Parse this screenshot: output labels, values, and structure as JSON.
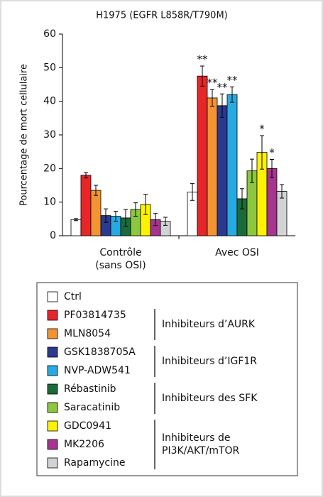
{
  "chart_data": {
    "type": "bar",
    "title": "H1975 (EGFR L858R/T790M)",
    "y_label": "Pourcentage de mort cellulaire",
    "categories": [
      [
        "Contrôle",
        "(sans OSI)"
      ],
      [
        "Avec OSI"
      ]
    ],
    "ylim": [
      0,
      60
    ],
    "yticks": [
      0,
      10,
      20,
      30,
      40,
      50,
      60
    ],
    "series": [
      {
        "name": "Ctrl",
        "color": "#ffffff",
        "values": [
          4.8,
          13
        ],
        "errors": [
          0.3,
          2.5
        ],
        "annotations": [
          null,
          null
        ]
      },
      {
        "name": "PF03814735",
        "color": "#e8262a",
        "values": [
          18,
          47.5
        ],
        "errors": [
          0.8,
          3
        ],
        "annotations": [
          null,
          "**"
        ]
      },
      {
        "name": "MLN8054",
        "color": "#f39433",
        "values": [
          13.5,
          41
        ],
        "errors": [
          1.5,
          2.5
        ],
        "annotations": [
          null,
          "**"
        ]
      },
      {
        "name": "GSK1838705A",
        "color": "#2b3990",
        "values": [
          6,
          38.7
        ],
        "errors": [
          2,
          3.5
        ],
        "annotations": [
          null,
          "**"
        ]
      },
      {
        "name": "NVP-ADW541",
        "color": "#27aae1",
        "values": [
          5.8,
          42
        ],
        "errors": [
          1.5,
          2.3
        ],
        "annotations": [
          null,
          "**"
        ]
      },
      {
        "name": "Rébastinib",
        "color": "#1b6b3a",
        "values": [
          5.3,
          11
        ],
        "errors": [
          2.5,
          3
        ],
        "annotations": [
          null,
          null
        ]
      },
      {
        "name": "Saracatinib",
        "color": "#8dc63f",
        "values": [
          7.8,
          19.3
        ],
        "errors": [
          2,
          3.5
        ],
        "annotations": [
          null,
          null
        ]
      },
      {
        "name": "GDC0941",
        "color": "#fff200",
        "values": [
          9.3,
          24.8
        ],
        "errors": [
          3,
          5
        ],
        "annotations": [
          null,
          "*"
        ]
      },
      {
        "name": "MK2206",
        "color": "#a5358f",
        "values": [
          4.8,
          20
        ],
        "errors": [
          1.8,
          2.7
        ],
        "annotations": [
          null,
          "*"
        ]
      },
      {
        "name": "Rapamycine",
        "color": "#d1d3d4",
        "values": [
          4.3,
          13.2
        ],
        "errors": [
          1.2,
          2
        ],
        "annotations": [
          null,
          null
        ]
      }
    ],
    "legend_groups": [
      {
        "label": [
          "Inhibiteurs d’AURK"
        ],
        "series": [
          1,
          2
        ]
      },
      {
        "label": [
          "Inhibiteurs d’IGF1R"
        ],
        "series": [
          3,
          4
        ]
      },
      {
        "label": [
          "Inhibiteurs des SFK"
        ],
        "series": [
          5,
          6
        ]
      },
      {
        "label": [
          "Inhibiteurs de",
          "PI3K/AKT/mTOR"
        ],
        "series": [
          7,
          9
        ]
      }
    ]
  }
}
